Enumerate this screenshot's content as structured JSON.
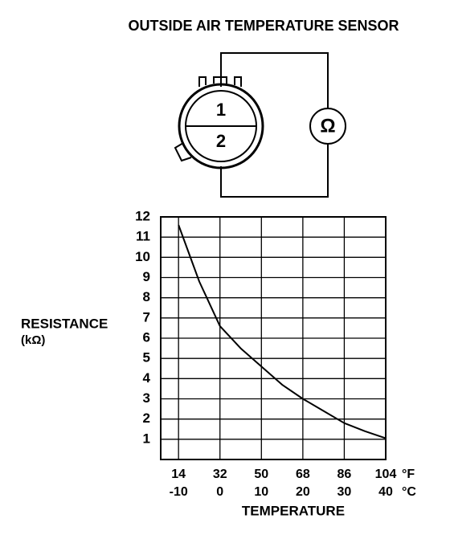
{
  "chart_data": {
    "type": "line",
    "title": "OUTSIDE AIR TEMPERATURE SENSOR",
    "y_label": "RESISTANCE",
    "y_unit": "(kΩ)",
    "x_label": "TEMPERATURE",
    "x_unit": "°C",
    "x2_unit": "°F",
    "x": [
      -10,
      -5,
      0,
      5,
      10,
      15,
      20,
      25,
      30,
      35,
      40
    ],
    "values": [
      11.6,
      8.8,
      6.6,
      5.5,
      4.6,
      3.7,
      3.0,
      2.4,
      1.8,
      1.4,
      1.05
    ],
    "color": "#000000",
    "xlim": [
      -14.3,
      40
    ],
    "xticks": [
      -10,
      0,
      10,
      20,
      30,
      40
    ],
    "x2ticks": [
      14,
      32,
      50,
      68,
      86,
      104
    ],
    "ylim": [
      0,
      12
    ],
    "yticks": [
      1,
      2,
      3,
      4,
      5,
      6,
      7,
      8,
      9,
      10,
      11,
      12
    ],
    "grid": true
  },
  "diagram": {
    "pins": [
      "1",
      "2"
    ],
    "meter": "Ω"
  }
}
